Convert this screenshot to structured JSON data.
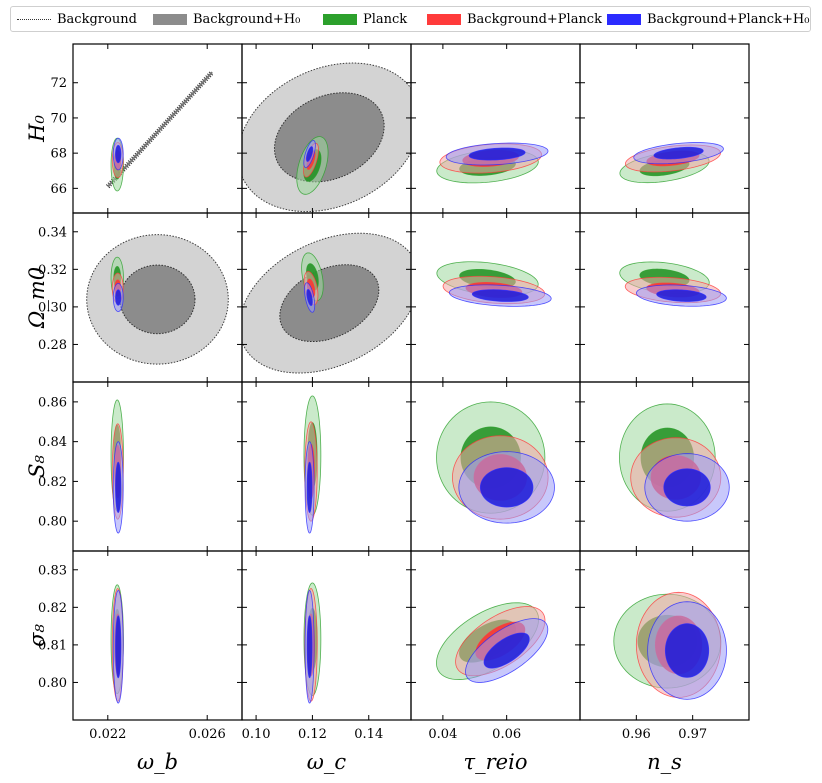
{
  "legend": [
    {
      "label": "Background",
      "style": "dotted",
      "color": "#333333"
    },
    {
      "label": "Background+H₀",
      "style": "fill",
      "color": "#8c8c8c"
    },
    {
      "label": "Planck",
      "style": "fill",
      "color": "#2ca02c"
    },
    {
      "label": "Background+Planck",
      "style": "fill",
      "color": "#ff3b3b"
    },
    {
      "label": "Background+Planck+H₀",
      "style": "fill",
      "color": "#2b2bff"
    }
  ],
  "chart_data": {
    "type": "triangle-contour",
    "description_of_levels": "68% (inner, darker) and 95% (outer, lighter) credible regions",
    "columns": [
      {
        "param": "omega_b",
        "label": "ω_b",
        "ticks": [
          0.022,
          0.026
        ],
        "tick_labels": [
          "0.022",
          "0.026"
        ],
        "range": [
          0.0206,
          0.0274
        ]
      },
      {
        "param": "omega_c",
        "label": "ω_c",
        "ticks": [
          0.1,
          0.12,
          0.14
        ],
        "tick_labels": [
          "0.10",
          "0.12",
          "0.14"
        ],
        "range": [
          0.095,
          0.155
        ]
      },
      {
        "param": "tau_reio",
        "label": "τ_reio",
        "ticks": [
          0.04,
          0.06
        ],
        "tick_labels": [
          "0.04",
          "0.06"
        ],
        "range": [
          0.03,
          0.083
        ]
      },
      {
        "param": "n_s",
        "label": "n_s",
        "ticks": [
          0.96,
          0.97
        ],
        "tick_labels": [
          "0.96",
          "0.97"
        ],
        "range": [
          0.95,
          0.98
        ]
      }
    ],
    "rows": [
      {
        "param": "H0",
        "label": "H₀",
        "ticks": [
          66,
          68,
          70,
          72
        ],
        "tick_labels": [
          "66",
          "68",
          "70",
          "72"
        ],
        "range": [
          64.6,
          74.2
        ]
      },
      {
        "param": "Omega_m0",
        "label": "Ω_m0",
        "ticks": [
          0.28,
          0.3,
          0.32,
          0.34
        ],
        "tick_labels": [
          "0.28",
          "0.30",
          "0.32",
          "0.34"
        ],
        "range": [
          0.26,
          0.35
        ]
      },
      {
        "param": "S8",
        "label": "S₈",
        "ticks": [
          0.8,
          0.82,
          0.84,
          0.86
        ],
        "tick_labels": [
          "0.80",
          "0.82",
          "0.84",
          "0.86"
        ],
        "range": [
          0.785,
          0.87
        ]
      },
      {
        "param": "sigma8",
        "label": "σ₈",
        "ticks": [
          0.8,
          0.81,
          0.82,
          0.83
        ],
        "tick_labels": [
          "0.80",
          "0.81",
          "0.82",
          "0.83"
        ],
        "range": [
          0.79,
          0.835
        ]
      }
    ],
    "series": [
      {
        "name": "Background",
        "color": "#333333",
        "fill_95": "none",
        "fill_68": "none",
        "style": "dotted",
        "contours": [
          {
            "col": "omega_b",
            "row": "H0",
            "kind": "line",
            "from": [
              0.022,
              66.1
            ],
            "to": [
              0.0262,
              72.6
            ],
            "width": 0.00012
          }
        ]
      },
      {
        "name": "Background+H₀",
        "color": "#111111",
        "fill_95": "#d3d3d3",
        "fill_68": "#8c8c8c",
        "style": "dotted-edge",
        "contours": [
          {
            "col": "omega_c",
            "row": "H0",
            "center": [
              0.126,
              68.9
            ],
            "a95": 0.034,
            "b95": 3.9,
            "rot": 0.44,
            "r68": 0.6
          },
          {
            "col": "omega_b",
            "row": "Omega_m0",
            "center": [
              0.024,
              0.304
            ],
            "a95": 0.00285,
            "b95": 0.0345,
            "rot": 0.0,
            "r68": 0.53
          },
          {
            "col": "omega_c",
            "row": "Omega_m0",
            "center": [
              0.126,
              0.302
            ],
            "a95": 0.034,
            "b95": 0.033,
            "rot": 0.46,
            "r68": 0.55
          }
        ]
      },
      {
        "name": "Planck",
        "color": "#2ca02c",
        "fill_95": "#9ed89e",
        "fill_68": "#1f8f1f",
        "contours": [
          {
            "col": "omega_b",
            "row": "H0",
            "center": [
              0.02238,
              67.35
            ],
            "a95": 0.00025,
            "b95": 1.5,
            "rot": 0.0,
            "r68": 0.55
          },
          {
            "col": "omega_c",
            "row": "H0",
            "center": [
              0.12,
              67.3
            ],
            "a95": 0.0048,
            "b95": 1.7,
            "rot": -0.3,
            "r68": 0.55
          },
          {
            "col": "tau_reio",
            "row": "H0",
            "center": [
              0.054,
              67.25
            ],
            "a95": 0.016,
            "b95": 0.9,
            "rot": 0.1,
            "r68": 0.55
          },
          {
            "col": "n_s",
            "row": "H0",
            "center": [
              0.965,
              67.2
            ],
            "a95": 0.008,
            "b95": 0.8,
            "rot": 0.15,
            "r68": 0.55
          },
          {
            "col": "omega_b",
            "row": "Omega_m0",
            "center": [
              0.02238,
              0.3155
            ],
            "a95": 0.00025,
            "b95": 0.011,
            "rot": 0.0,
            "r68": 0.55
          },
          {
            "col": "omega_c",
            "row": "Omega_m0",
            "center": [
              0.12,
              0.316
            ],
            "a95": 0.0035,
            "b95": 0.013,
            "rot": 0.2,
            "r68": 0.55
          },
          {
            "col": "tau_reio",
            "row": "Omega_m0",
            "center": [
              0.054,
              0.315
            ],
            "a95": 0.016,
            "b95": 0.0085,
            "rot": -0.12,
            "r68": 0.55
          },
          {
            "col": "n_s",
            "row": "Omega_m0",
            "center": [
              0.965,
              0.3155
            ],
            "a95": 0.008,
            "b95": 0.008,
            "rot": -0.12,
            "r68": 0.55
          },
          {
            "col": "omega_b",
            "row": "S8",
            "center": [
              0.02238,
              0.833
            ],
            "a95": 0.00025,
            "b95": 0.028,
            "rot": 0.0,
            "r68": 0.55
          },
          {
            "col": "omega_c",
            "row": "S8",
            "center": [
              0.12,
              0.833
            ],
            "a95": 0.003,
            "b95": 0.03,
            "rot": 0.0,
            "r68": 0.55
          },
          {
            "col": "tau_reio",
            "row": "S8",
            "center": [
              0.055,
              0.832
            ],
            "a95": 0.017,
            "b95": 0.028,
            "rot": 0.0,
            "r68": 0.55
          },
          {
            "col": "n_s",
            "row": "S8",
            "center": [
              0.9655,
              0.832
            ],
            "a95": 0.0085,
            "b95": 0.027,
            "rot": 0.0,
            "r68": 0.55
          },
          {
            "col": "omega_b",
            "row": "sigma8",
            "center": [
              0.02238,
              0.8115
            ],
            "a95": 0.00025,
            "b95": 0.0145,
            "rot": 0.0,
            "r68": 0.55
          },
          {
            "col": "omega_c",
            "row": "sigma8",
            "center": [
              0.12,
              0.8115
            ],
            "a95": 0.003,
            "b95": 0.015,
            "rot": 0.0,
            "r68": 0.55
          },
          {
            "col": "tau_reio",
            "row": "sigma8",
            "center": [
              0.054,
              0.811
            ],
            "a95": 0.018,
            "b95": 0.0075,
            "rot": 0.55,
            "r68": 0.55
          },
          {
            "col": "n_s",
            "row": "sigma8",
            "center": [
              0.9655,
              0.811
            ],
            "a95": 0.0095,
            "b95": 0.0125,
            "rot": 0.0,
            "r68": 0.55
          }
        ]
      },
      {
        "name": "Background+Planck",
        "color": "#ff3b3b",
        "fill_95": "#f4a6a6",
        "fill_68": "#ff3030",
        "contours": [
          {
            "col": "omega_b",
            "row": "H0",
            "center": [
              0.0224,
              67.6
            ],
            "a95": 0.00022,
            "b95": 1.0,
            "rot": 0.0,
            "r68": 0.55
          },
          {
            "col": "omega_c",
            "row": "H0",
            "center": [
              0.1195,
              67.6
            ],
            "a95": 0.002,
            "b95": 1.0,
            "rot": -0.3,
            "r68": 0.55
          },
          {
            "col": "tau_reio",
            "row": "H0",
            "center": [
              0.055,
              67.7
            ],
            "a95": 0.016,
            "b95": 0.8,
            "rot": 0.08,
            "r68": 0.55
          },
          {
            "col": "n_s",
            "row": "H0",
            "center": [
              0.9665,
              67.7
            ],
            "a95": 0.0085,
            "b95": 0.7,
            "rot": 0.12,
            "r68": 0.55
          },
          {
            "col": "omega_b",
            "row": "Omega_m0",
            "center": [
              0.0224,
              0.31
            ],
            "a95": 0.00022,
            "b95": 0.008,
            "rot": 0.0,
            "r68": 0.55
          },
          {
            "col": "omega_c",
            "row": "Omega_m0",
            "center": [
              0.1195,
              0.31
            ],
            "a95": 0.0022,
            "b95": 0.009,
            "rot": 0.2,
            "r68": 0.55
          },
          {
            "col": "tau_reio",
            "row": "Omega_m0",
            "center": [
              0.056,
              0.309
            ],
            "a95": 0.016,
            "b95": 0.007,
            "rot": -0.08,
            "r68": 0.55
          },
          {
            "col": "n_s",
            "row": "Omega_m0",
            "center": [
              0.9665,
              0.309
            ],
            "a95": 0.0085,
            "b95": 0.0065,
            "rot": -0.08,
            "r68": 0.55
          },
          {
            "col": "omega_b",
            "row": "S8",
            "center": [
              0.0224,
              0.825
            ],
            "a95": 0.00022,
            "b95": 0.024,
            "rot": 0.0,
            "r68": 0.55
          },
          {
            "col": "omega_c",
            "row": "S8",
            "center": [
              0.1195,
              0.825
            ],
            "a95": 0.0022,
            "b95": 0.025,
            "rot": 0.0,
            "r68": 0.55
          },
          {
            "col": "tau_reio",
            "row": "S8",
            "center": [
              0.058,
              0.822
            ],
            "a95": 0.015,
            "b95": 0.021,
            "rot": 0.0,
            "r68": 0.55
          },
          {
            "col": "n_s",
            "row": "S8",
            "center": [
              0.967,
              0.822
            ],
            "a95": 0.008,
            "b95": 0.02,
            "rot": 0.0,
            "r68": 0.55
          },
          {
            "col": "omega_b",
            "row": "sigma8",
            "center": [
              0.0224,
              0.81
            ],
            "a95": 0.00022,
            "b95": 0.015,
            "rot": 0.0,
            "r68": 0.55
          },
          {
            "col": "omega_c",
            "row": "sigma8",
            "center": [
              0.1195,
              0.81
            ],
            "a95": 0.0022,
            "b95": 0.015,
            "rot": 0.0,
            "r68": 0.55
          },
          {
            "col": "tau_reio",
            "row": "sigma8",
            "center": [
              0.058,
              0.811
            ],
            "a95": 0.016,
            "b95": 0.0065,
            "rot": 0.58,
            "r68": 0.55
          },
          {
            "col": "n_s",
            "row": "sigma8",
            "center": [
              0.9675,
              0.81
            ],
            "a95": 0.0075,
            "b95": 0.014,
            "rot": 0.0,
            "r68": 0.55
          }
        ]
      },
      {
        "name": "Background+Planck+H₀",
        "color": "#2b2bff",
        "fill_95": "#9a9af8",
        "fill_68": "#1a1adb",
        "contours": [
          {
            "col": "omega_b",
            "row": "H0",
            "center": [
              0.02242,
              67.95
            ],
            "a95": 0.0002,
            "b95": 0.9,
            "rot": 0.0,
            "r68": 0.55
          },
          {
            "col": "omega_c",
            "row": "H0",
            "center": [
              0.119,
              67.95
            ],
            "a95": 0.0015,
            "b95": 0.8,
            "rot": -0.3,
            "r68": 0.55
          },
          {
            "col": "tau_reio",
            "row": "H0",
            "center": [
              0.057,
              67.95
            ],
            "a95": 0.016,
            "b95": 0.6,
            "rot": 0.06,
            "r68": 0.55
          },
          {
            "col": "n_s",
            "row": "H0",
            "center": [
              0.9675,
              68.0
            ],
            "a95": 0.008,
            "b95": 0.55,
            "rot": 0.1,
            "r68": 0.55
          },
          {
            "col": "omega_b",
            "row": "Omega_m0",
            "center": [
              0.02242,
              0.305
            ],
            "a95": 0.0002,
            "b95": 0.0075,
            "rot": 0.0,
            "r68": 0.55
          },
          {
            "col": "omega_c",
            "row": "Omega_m0",
            "center": [
              0.119,
              0.305
            ],
            "a95": 0.0015,
            "b95": 0.008,
            "rot": 0.2,
            "r68": 0.55
          },
          {
            "col": "tau_reio",
            "row": "Omega_m0",
            "center": [
              0.058,
              0.306
            ],
            "a95": 0.016,
            "b95": 0.0055,
            "rot": -0.06,
            "r68": 0.55
          },
          {
            "col": "n_s",
            "row": "Omega_m0",
            "center": [
              0.968,
              0.306
            ],
            "a95": 0.008,
            "b95": 0.0055,
            "rot": -0.06,
            "r68": 0.55
          },
          {
            "col": "omega_b",
            "row": "S8",
            "center": [
              0.02242,
              0.817
            ],
            "a95": 0.0002,
            "b95": 0.023,
            "rot": 0.0,
            "r68": 0.55
          },
          {
            "col": "omega_c",
            "row": "S8",
            "center": [
              0.119,
              0.817
            ],
            "a95": 0.0016,
            "b95": 0.023,
            "rot": 0.0,
            "r68": 0.55
          },
          {
            "col": "tau_reio",
            "row": "S8",
            "center": [
              0.06,
              0.817
            ],
            "a95": 0.015,
            "b95": 0.018,
            "rot": 0.0,
            "r68": 0.55
          },
          {
            "col": "n_s",
            "row": "S8",
            "center": [
              0.969,
              0.817
            ],
            "a95": 0.0075,
            "b95": 0.017,
            "rot": 0.0,
            "r68": 0.55
          },
          {
            "col": "omega_b",
            "row": "sigma8",
            "center": [
              0.02242,
              0.8095
            ],
            "a95": 0.0002,
            "b95": 0.015,
            "rot": 0.0,
            "r68": 0.55
          },
          {
            "col": "omega_c",
            "row": "sigma8",
            "center": [
              0.119,
              0.8095
            ],
            "a95": 0.0016,
            "b95": 0.015,
            "rot": 0.0,
            "r68": 0.55
          },
          {
            "col": "tau_reio",
            "row": "sigma8",
            "center": [
              0.06,
              0.8085
            ],
            "a95": 0.015,
            "b95": 0.0055,
            "rot": 0.6,
            "r68": 0.55
          },
          {
            "col": "n_s",
            "row": "sigma8",
            "center": [
              0.969,
              0.8085
            ],
            "a95": 0.007,
            "b95": 0.013,
            "rot": 0.0,
            "r68": 0.55
          }
        ]
      }
    ]
  }
}
